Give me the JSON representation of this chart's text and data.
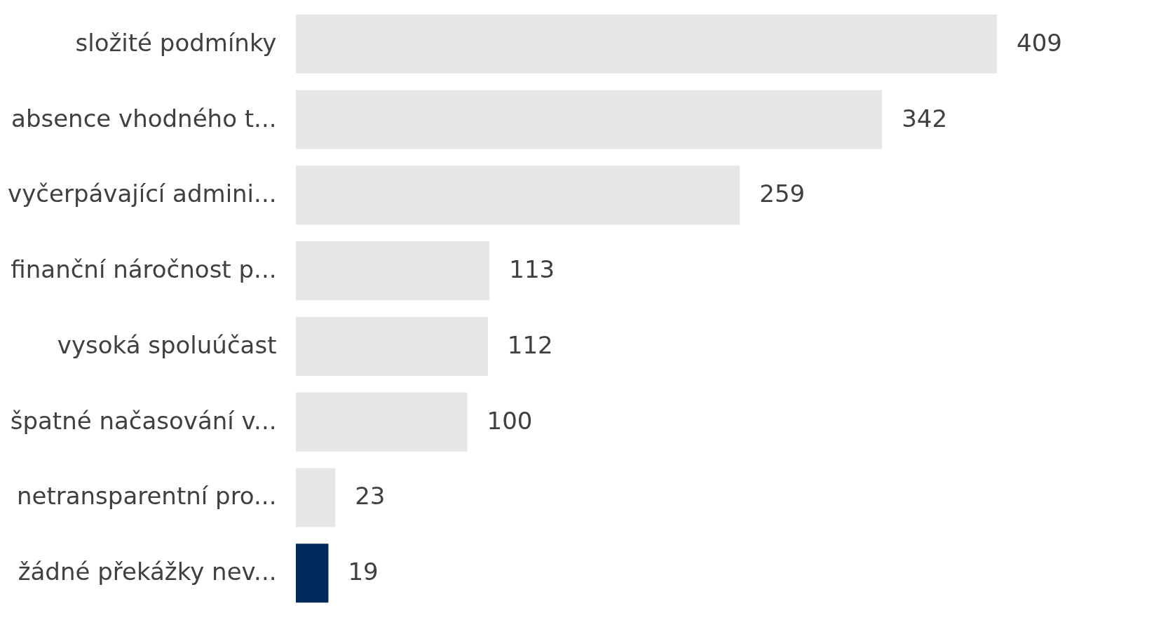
{
  "chart_data": {
    "type": "bar",
    "orientation": "horizontal",
    "data_labels": true,
    "categories": [
      "složité podmínky",
      "absence vhodného t...",
      "vyčerpávající admini...",
      "finanční náročnost p...",
      "vysoká spoluúčast",
      "špatné načasování v...",
      "netransparentní pro...",
      "žádné překážky nev..."
    ],
    "values": [
      409,
      342,
      259,
      113,
      112,
      100,
      23,
      19
    ],
    "colors": [
      "#e6e6e6",
      "#e6e6e6",
      "#e6e6e6",
      "#e6e6e6",
      "#e6e6e6",
      "#e6e6e6",
      "#e6e6e6",
      "#002a5c"
    ]
  }
}
